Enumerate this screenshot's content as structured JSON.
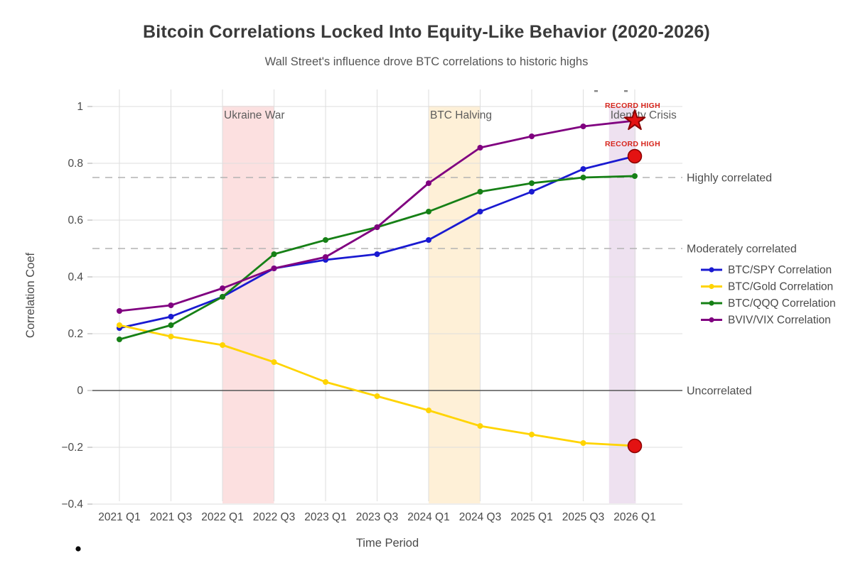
{
  "title": "Bitcoin Correlations Locked Into Equity-Like Behavior (2020-2026)",
  "subtitle": "Wall Street's influence drove BTC correlations to historic highs",
  "chart_data": {
    "type": "line",
    "title": "Bitcoin Correlations Locked Into Equity-Like Behavior (2020-2026)",
    "subtitle": "Wall Street's influence drove BTC correlations to historic highs",
    "xlabel": "Time Period",
    "ylabel": "Correlation Coef",
    "categories": [
      "2021 Q1",
      "2021 Q3",
      "2022 Q1",
      "2022 Q3",
      "2023 Q1",
      "2023 Q3",
      "2024 Q1",
      "2024 Q3",
      "2025 Q1",
      "2025 Q3",
      "2026 Q1"
    ],
    "ylim": [
      -0.4,
      1.06
    ],
    "yticks": [
      {
        "value": 1,
        "label": "1"
      },
      {
        "value": 0.8,
        "label": "0.8"
      },
      {
        "value": 0.6,
        "label": "0.6"
      },
      {
        "value": 0.4,
        "label": "0.4"
      },
      {
        "value": 0.2,
        "label": "0.2"
      },
      {
        "value": 0,
        "label": "0"
      },
      {
        "value": -0.2,
        "label": "−0.2"
      },
      {
        "value": -0.4,
        "label": "−0.4"
      }
    ],
    "grid": true,
    "legend_position": "right-middle",
    "series": [
      {
        "name": "BTC/SPY Correlation",
        "color": "#1a1ad1",
        "values": [
          0.22,
          0.26,
          0.33,
          0.43,
          0.46,
          0.48,
          0.53,
          0.63,
          0.7,
          0.78,
          0.825
        ]
      },
      {
        "name": "BTC/Gold Correlation",
        "color": "#ffd400",
        "values": [
          0.23,
          0.19,
          0.16,
          0.1,
          0.03,
          -0.02,
          -0.07,
          -0.125,
          -0.155,
          -0.185,
          -0.195
        ]
      },
      {
        "name": "BTC/QQQ Correlation",
        "color": "#168016",
        "values": [
          0.18,
          0.23,
          0.33,
          0.48,
          0.53,
          0.575,
          0.63,
          0.7,
          0.73,
          0.75,
          0.755
        ]
      },
      {
        "name": "BVIV/VIX Correlation",
        "color": "#800080",
        "values": [
          0.28,
          0.3,
          0.36,
          0.43,
          0.47,
          0.575,
          0.73,
          0.855,
          0.895,
          0.93,
          0.95
        ]
      }
    ],
    "bands": [
      {
        "label": "Ukraine War",
        "from_category": "2022 Q1",
        "to_category": "2022 Q3",
        "from_index": 2,
        "to_index": 3,
        "color": "rgba(240,100,100,0.20)"
      },
      {
        "label": "BTC Halving",
        "from_category": "2024 Q1",
        "to_category": "2024 Q3",
        "from_index": 6,
        "to_index": 7,
        "color": "rgba(250,200,110,0.28)"
      },
      {
        "label": "Identity Crisis",
        "from_category": "2025 Q4",
        "to_category": "2026 Q1",
        "from_index": 9.5,
        "to_index": 10.02,
        "color": "rgba(150,70,160,0.16)"
      }
    ],
    "reference_lines": [
      {
        "value": 0.75,
        "style": "dashed",
        "label": "Highly correlated"
      },
      {
        "value": 0.5,
        "style": "dashed",
        "label": "Moderately correlated"
      },
      {
        "value": 0,
        "style": "solid",
        "label": "Uncorrelated"
      }
    ],
    "record_markers": [
      {
        "shape": "star",
        "category": "2026 Q1",
        "x_index": 10,
        "value": 0.95,
        "label": "RECORD HIGH"
      },
      {
        "shape": "circle",
        "category": "2026 Q1",
        "x_index": 10,
        "value": 0.825,
        "label": "RECORD HIGH"
      },
      {
        "shape": "circle",
        "category": "2026 Q1",
        "x_index": 10,
        "value": -0.195,
        "label": ""
      }
    ]
  },
  "colors": {
    "record_marker": "#e31212",
    "record_marker_edge": "#8b0000",
    "record_label": "#d7261d",
    "grid": "#dedede",
    "dashed_ref": "#b3b3b3",
    "zero_line": "#555555",
    "tick_label": "#4a4a4a",
    "annotation": "#5c5c5c",
    "ref_label": "#4d4d4d"
  },
  "artifacts": {
    "stray_bullet_dot": true,
    "clipped_text_marks_count": 2
  }
}
